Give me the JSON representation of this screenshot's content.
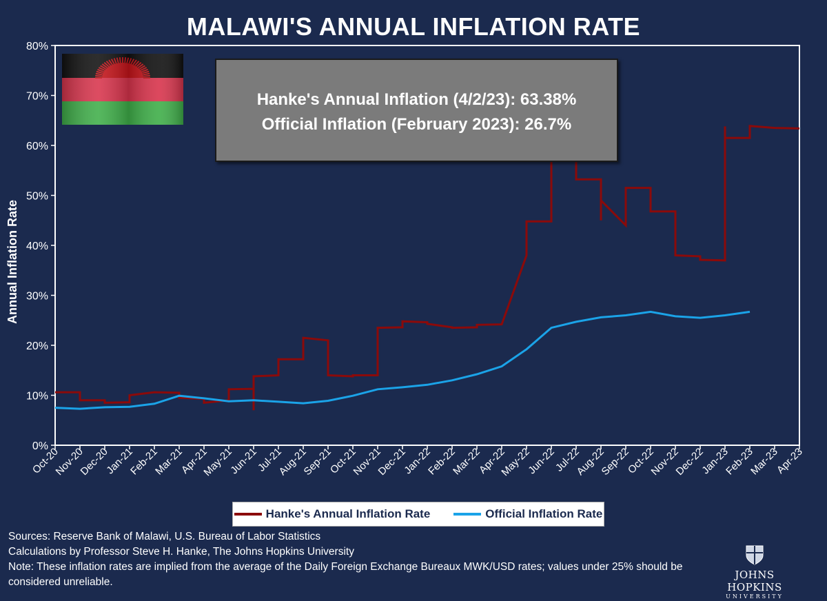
{
  "title": "MALAWI'S ANNUAL INFLATION RATE",
  "callout": {
    "line1": "Hanke's Annual Inflation (4/2/23): 63.38%",
    "line2": "Official Inflation (February 2023): 26.7%"
  },
  "legend": {
    "hanke": "Hanke's Annual Inflation Rate",
    "official": "Official Inflation Rate"
  },
  "footer": {
    "sources": "Sources: Reserve Bank of Malawi, U.S. Bureau of Labor Statistics",
    "calculations": "Calculations by Professor Steve H. Hanke, The Johns Hopkins University",
    "note": "Note: These inflation rates are implied from the average of the Daily Foreign Exchange Bureaux MWK/USD rates; values under 25% should be considered unreliable."
  },
  "logo": {
    "name": "JOHNS HOPKINS",
    "sub": "UNIVERSITY"
  },
  "colors": {
    "background": "#1b2a4e",
    "hanke": "#8b0a0a",
    "official": "#1ba3e8",
    "flag_black": "#111111",
    "flag_red": "#d8344c",
    "flag_green": "#3fae49",
    "sun": "#c4141a"
  },
  "chart_data": {
    "type": "line",
    "title": "MALAWI'S ANNUAL INFLATION RATE",
    "xlabel": "",
    "ylabel": "Annual Inflation Rate",
    "ylim": [
      0,
      80
    ],
    "yticks": [
      0,
      10,
      20,
      30,
      40,
      50,
      60,
      70,
      80
    ],
    "ytick_labels": [
      "0%",
      "10%",
      "20%",
      "30%",
      "40%",
      "50%",
      "60%",
      "70%",
      "80%"
    ],
    "categories": [
      "Oct-20",
      "Nov-20",
      "Dec-20",
      "Jan-21",
      "Feb-21",
      "Mar-21",
      "Apr-21",
      "May-21",
      "Jun-21",
      "Jul-21",
      "Aug-21",
      "Sep-21",
      "Oct-21",
      "Nov-21",
      "Dec-21",
      "Jan-22",
      "Feb-22",
      "Mar-22",
      "Apr-22",
      "May-22",
      "Jun-22",
      "Jul-22",
      "Aug-22",
      "Sep-22",
      "Oct-22",
      "Nov-22",
      "Dec-22",
      "Jan-23",
      "Feb-23",
      "Mar-23",
      "Apr-23"
    ],
    "grid": false,
    "legend_position": "bottom",
    "series": [
      {
        "name": "Hanke's Annual Inflation Rate",
        "x": [
          0,
          1,
          1,
          2,
          2,
          3,
          3,
          4,
          4,
          5,
          5,
          6,
          6,
          7,
          7,
          8,
          8,
          8,
          9,
          9,
          10,
          10,
          11,
          11,
          12,
          12,
          13,
          13,
          14,
          14,
          15,
          15,
          16,
          16,
          17,
          17,
          18,
          18,
          19,
          19,
          20,
          20,
          21,
          21,
          22,
          22,
          22,
          23,
          23,
          24,
          24,
          25,
          25,
          26,
          26,
          27,
          27,
          27,
          28,
          28,
          29,
          30
        ],
        "y": [
          10.6,
          10.6,
          9.0,
          9.0,
          8.5,
          8.6,
          10.0,
          10.6,
          10.6,
          10.5,
          9.5,
          9.3,
          8.5,
          9.0,
          11.2,
          11.3,
          7.0,
          13.8,
          14.0,
          17.2,
          17.2,
          21.5,
          21.0,
          14.0,
          13.8,
          14.0,
          14.0,
          23.5,
          23.6,
          24.8,
          24.6,
          24.3,
          23.6,
          23.5,
          23.6,
          24.1,
          24.2,
          24.2,
          38.0,
          44.8,
          44.8,
          57.0,
          57.0,
          53.2,
          53.2,
          45.0,
          49.0,
          44.0,
          51.5,
          51.5,
          46.8,
          46.8,
          38.0,
          37.8,
          37.1,
          37.0,
          63.8,
          61.5,
          61.5,
          63.9,
          63.5,
          63.4
        ]
      },
      {
        "name": "Official Inflation Rate",
        "x": [
          0,
          1,
          2,
          3,
          4,
          5,
          6,
          7,
          8,
          9,
          10,
          11,
          12,
          13,
          14,
          15,
          16,
          17,
          18,
          19,
          20,
          21,
          22,
          23,
          24,
          25,
          26,
          27,
          28
        ],
        "y": [
          7.5,
          7.3,
          7.6,
          7.7,
          8.3,
          9.9,
          9.4,
          8.8,
          9.0,
          8.7,
          8.4,
          8.9,
          9.9,
          11.2,
          11.6,
          12.1,
          13.0,
          14.2,
          15.8,
          19.2,
          23.5,
          24.7,
          25.6,
          26.0,
          26.7,
          25.8,
          25.5,
          26.0,
          26.7
        ]
      }
    ]
  }
}
